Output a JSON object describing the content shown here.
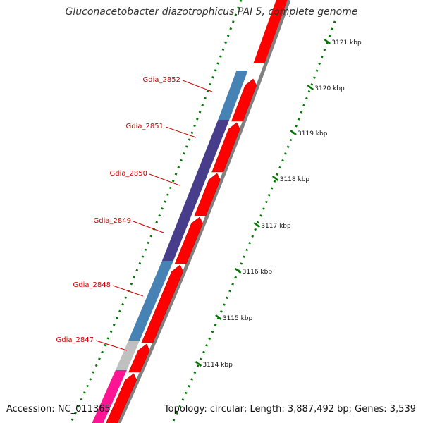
{
  "title": "Gluconacetobacter diazotrophicus PAI 5, complete genome",
  "accession": "Accession: NC_011365",
  "topology": "Topology: circular; Length: 3,887,492 bp; Genes: 3,539",
  "colors": {
    "forward_gene": "#ff0000",
    "reverse_gene": "#4682b4",
    "reverse_gene_dark": "#483d8b",
    "gray_gene": "#c0c0c0",
    "pink_gene": "#ff1493",
    "backbone": "#808080",
    "ticks": "#007700",
    "label_text": "#cc0000"
  },
  "chart_data": {
    "type": "genome_map",
    "ruler_unit": "kbp",
    "ruler_labels": [
      "3121 kbp",
      "3120 kbp",
      "3119 kbp",
      "3118 kbp",
      "3117 kbp",
      "3116 kbp",
      "3115 kbp",
      "3114 kbp"
    ],
    "labeled_genes": [
      "Gdia_2852",
      "Gdia_2851",
      "Gdia_2850",
      "Gdia_2849",
      "Gdia_2848",
      "Gdia_2847"
    ]
  }
}
